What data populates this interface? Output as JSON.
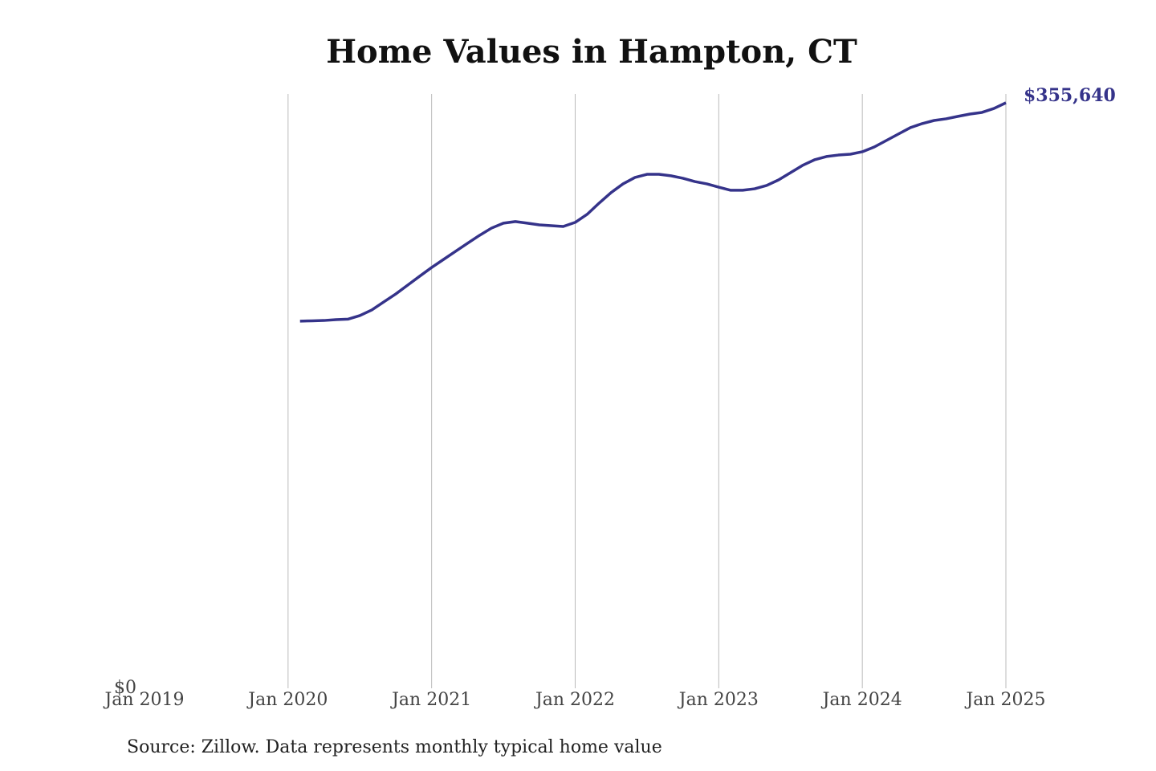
{
  "chart_data": {
    "type": "line",
    "title": "Home Values in Hampton, CT",
    "source": "Source: Zillow. Data represents monthly typical home value",
    "x": [
      "2020-02",
      "2020-03",
      "2020-04",
      "2020-05",
      "2020-06",
      "2020-07",
      "2020-08",
      "2020-09",
      "2020-10",
      "2020-11",
      "2020-12",
      "2021-01",
      "2021-02",
      "2021-03",
      "2021-04",
      "2021-05",
      "2021-06",
      "2021-07",
      "2021-08",
      "2021-09",
      "2021-10",
      "2021-11",
      "2021-12",
      "2022-01",
      "2022-02",
      "2022-03",
      "2022-04",
      "2022-05",
      "2022-06",
      "2022-07",
      "2022-08",
      "2022-09",
      "2022-10",
      "2022-11",
      "2022-12",
      "2023-01",
      "2023-02",
      "2023-03",
      "2023-04",
      "2023-05",
      "2023-06",
      "2023-07",
      "2023-08",
      "2023-09",
      "2023-10",
      "2023-11",
      "2023-12",
      "2024-01",
      "2024-02",
      "2024-03",
      "2024-04",
      "2024-05",
      "2024-06",
      "2024-07",
      "2024-08",
      "2024-09",
      "2024-10",
      "2024-11",
      "2024-12",
      "2025-01"
    ],
    "series": [
      {
        "name": "Home value",
        "color": "#35338a",
        "values": [
          223000,
          223200,
          223400,
          223900,
          224200,
          226400,
          229800,
          234700,
          239500,
          244900,
          250300,
          255600,
          260500,
          265400,
          270300,
          275100,
          279500,
          282500,
          283500,
          282500,
          281500,
          281000,
          280500,
          283000,
          287900,
          294700,
          301100,
          306400,
          310300,
          312200,
          312200,
          311300,
          309800,
          307800,
          306400,
          304400,
          302500,
          302500,
          303400,
          305400,
          308800,
          313200,
          317600,
          321000,
          323000,
          323900,
          324400,
          325900,
          328800,
          332700,
          336600,
          340500,
          343000,
          344900,
          345900,
          347400,
          348800,
          349800,
          352200,
          355640
        ],
        "value_labels": [
          null,
          null,
          null,
          null,
          null,
          null,
          null,
          null,
          null,
          null,
          null,
          null,
          null,
          null,
          null,
          null,
          null,
          null,
          null,
          null,
          null,
          null,
          null,
          null,
          null,
          null,
          null,
          null,
          null,
          null,
          null,
          null,
          null,
          null,
          null,
          null,
          null,
          null,
          null,
          null,
          null,
          null,
          null,
          null,
          null,
          null,
          null,
          null,
          null,
          null,
          null,
          null,
          null,
          null,
          null,
          null,
          null,
          null,
          null,
          "$355,640"
        ]
      }
    ],
    "xlim": [
      "2019-01",
      "2025-01"
    ],
    "xticks": [
      {
        "value": "2019-01",
        "label": "Jan 2019"
      },
      {
        "value": "2020-01",
        "label": "Jan 2020"
      },
      {
        "value": "2021-01",
        "label": "Jan 2021"
      },
      {
        "value": "2022-01",
        "label": "Jan 2022"
      },
      {
        "value": "2023-01",
        "label": "Jan 2023"
      },
      {
        "value": "2024-01",
        "label": "Jan 2024"
      },
      {
        "value": "2025-01",
        "label": "Jan 2025"
      }
    ],
    "ylim": [
      0,
      361000
    ],
    "yticks": [
      {
        "value": 0,
        "label": "$0"
      }
    ],
    "grid": true
  }
}
